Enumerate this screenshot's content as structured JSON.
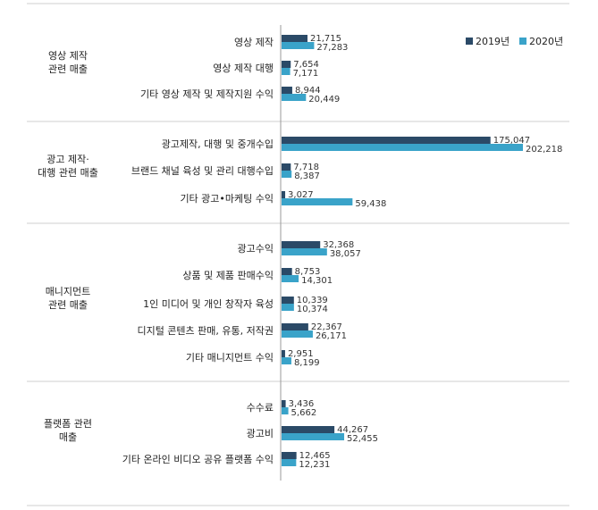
{
  "chart_data": {
    "type": "bar",
    "orientation": "horizontal",
    "legend_position": "top-right",
    "colors": {
      "2019년": "#2b4a67",
      "2020년": "#3aa3c9"
    },
    "groups": [
      {
        "label_lines": [
          "영상 제작",
          "관련 매출"
        ],
        "categories": [
          "영상 제작",
          "영상 제작 대행",
          "기타 영상 제작 및 제작지원 수익"
        ],
        "v2019": [
          21715,
          7654,
          8944
        ],
        "v2020": [
          27283,
          7171,
          20449
        ],
        "l2019": [
          "21,715",
          "7,654",
          "8,944"
        ],
        "l2020": [
          "27,283",
          "7,171",
          "20,449"
        ]
      },
      {
        "label_lines": [
          "광고 제작·",
          "대행 관련 매출"
        ],
        "categories": [
          "광고제작, 대행 및 중개수입",
          "브랜드 채널 육성 및 관리 대행수입",
          "기타 광고•마케팅 수익"
        ],
        "v2019": [
          175047,
          7718,
          3027
        ],
        "v2020": [
          202218,
          8387,
          59438
        ],
        "l2019": [
          "175,047",
          "7,718",
          "3,027"
        ],
        "l2020": [
          "202,218",
          "8,387",
          "59,438"
        ]
      },
      {
        "label_lines": [
          "매니지먼트",
          "관련 매출"
        ],
        "categories": [
          "광고수익",
          "상품 및 제품 판매수익",
          "1인 미디어 및 개인 창작자 육성",
          "디지털 콘텐츠 판매, 유통, 저작권",
          "기타 매니지먼트 수익"
        ],
        "v2019": [
          32368,
          8753,
          10339,
          22367,
          2951
        ],
        "v2020": [
          38057,
          14301,
          10374,
          26171,
          8199
        ],
        "l2019": [
          "32,368",
          "8,753",
          "10,339",
          "22,367",
          "2,951"
        ],
        "l2020": [
          "38,057",
          "14,301",
          "10,374",
          "26,171",
          "8,199"
        ]
      },
      {
        "label_lines": [
          "플랫폼 관련",
          "매출"
        ],
        "categories": [
          "수수료",
          "광고비",
          "기타 온라인 비디오 공유 플랫폼 수익"
        ],
        "v2019": [
          3436,
          44267,
          12465
        ],
        "v2020": [
          5662,
          52455,
          12231
        ],
        "l2019": [
          "3,436",
          "44,267",
          "12,465"
        ],
        "l2020": [
          "5,662",
          "52,455",
          "12,231"
        ]
      }
    ],
    "series": [
      {
        "name": "2019년"
      },
      {
        "name": "2020년"
      }
    ]
  }
}
